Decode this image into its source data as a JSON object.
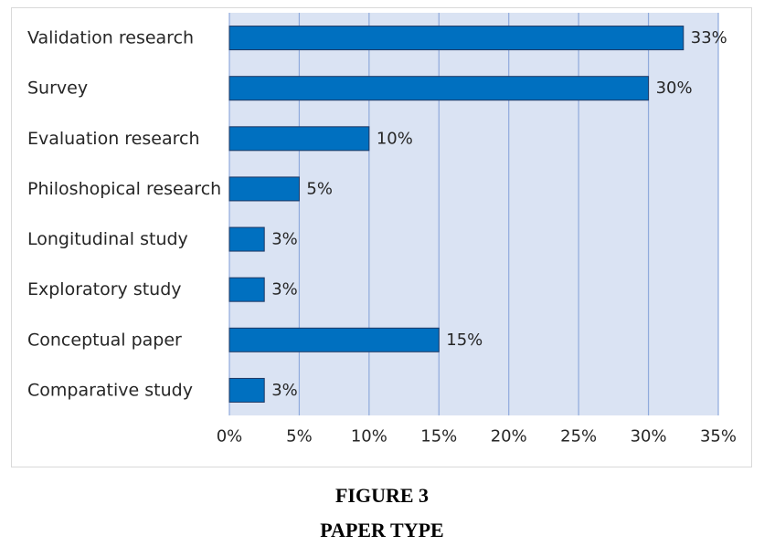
{
  "chart_data": {
    "type": "bar",
    "orientation": "horizontal",
    "categories": [
      "Validation research",
      "Survey",
      "Evaluation research",
      "Philoshopical research",
      "Longitudinal study",
      "Exploratory study",
      "Conceptual paper",
      "Comparative study"
    ],
    "values": [
      32.5,
      30,
      10,
      5,
      2.5,
      2.5,
      15,
      2.5
    ],
    "data_labels": [
      "33%",
      "30%",
      "10%",
      "5%",
      "3%",
      "3%",
      "15%",
      "3%"
    ],
    "xlim": [
      0,
      35
    ],
    "x_ticks": [
      0,
      5,
      10,
      15,
      20,
      25,
      30,
      35
    ],
    "x_tick_labels": [
      "0%",
      "5%",
      "10%",
      "15%",
      "20%",
      "25%",
      "30%",
      "35%"
    ],
    "grid": "vertical",
    "legend": "none",
    "colors": {
      "bar_fill": "#0070c0",
      "bar_stroke": "#1f3864",
      "plot_background": "#dae3f3",
      "gridline": "#8faadc"
    }
  },
  "caption": {
    "figure_number": "FIGURE 3",
    "title": "PAPER TYPE"
  }
}
